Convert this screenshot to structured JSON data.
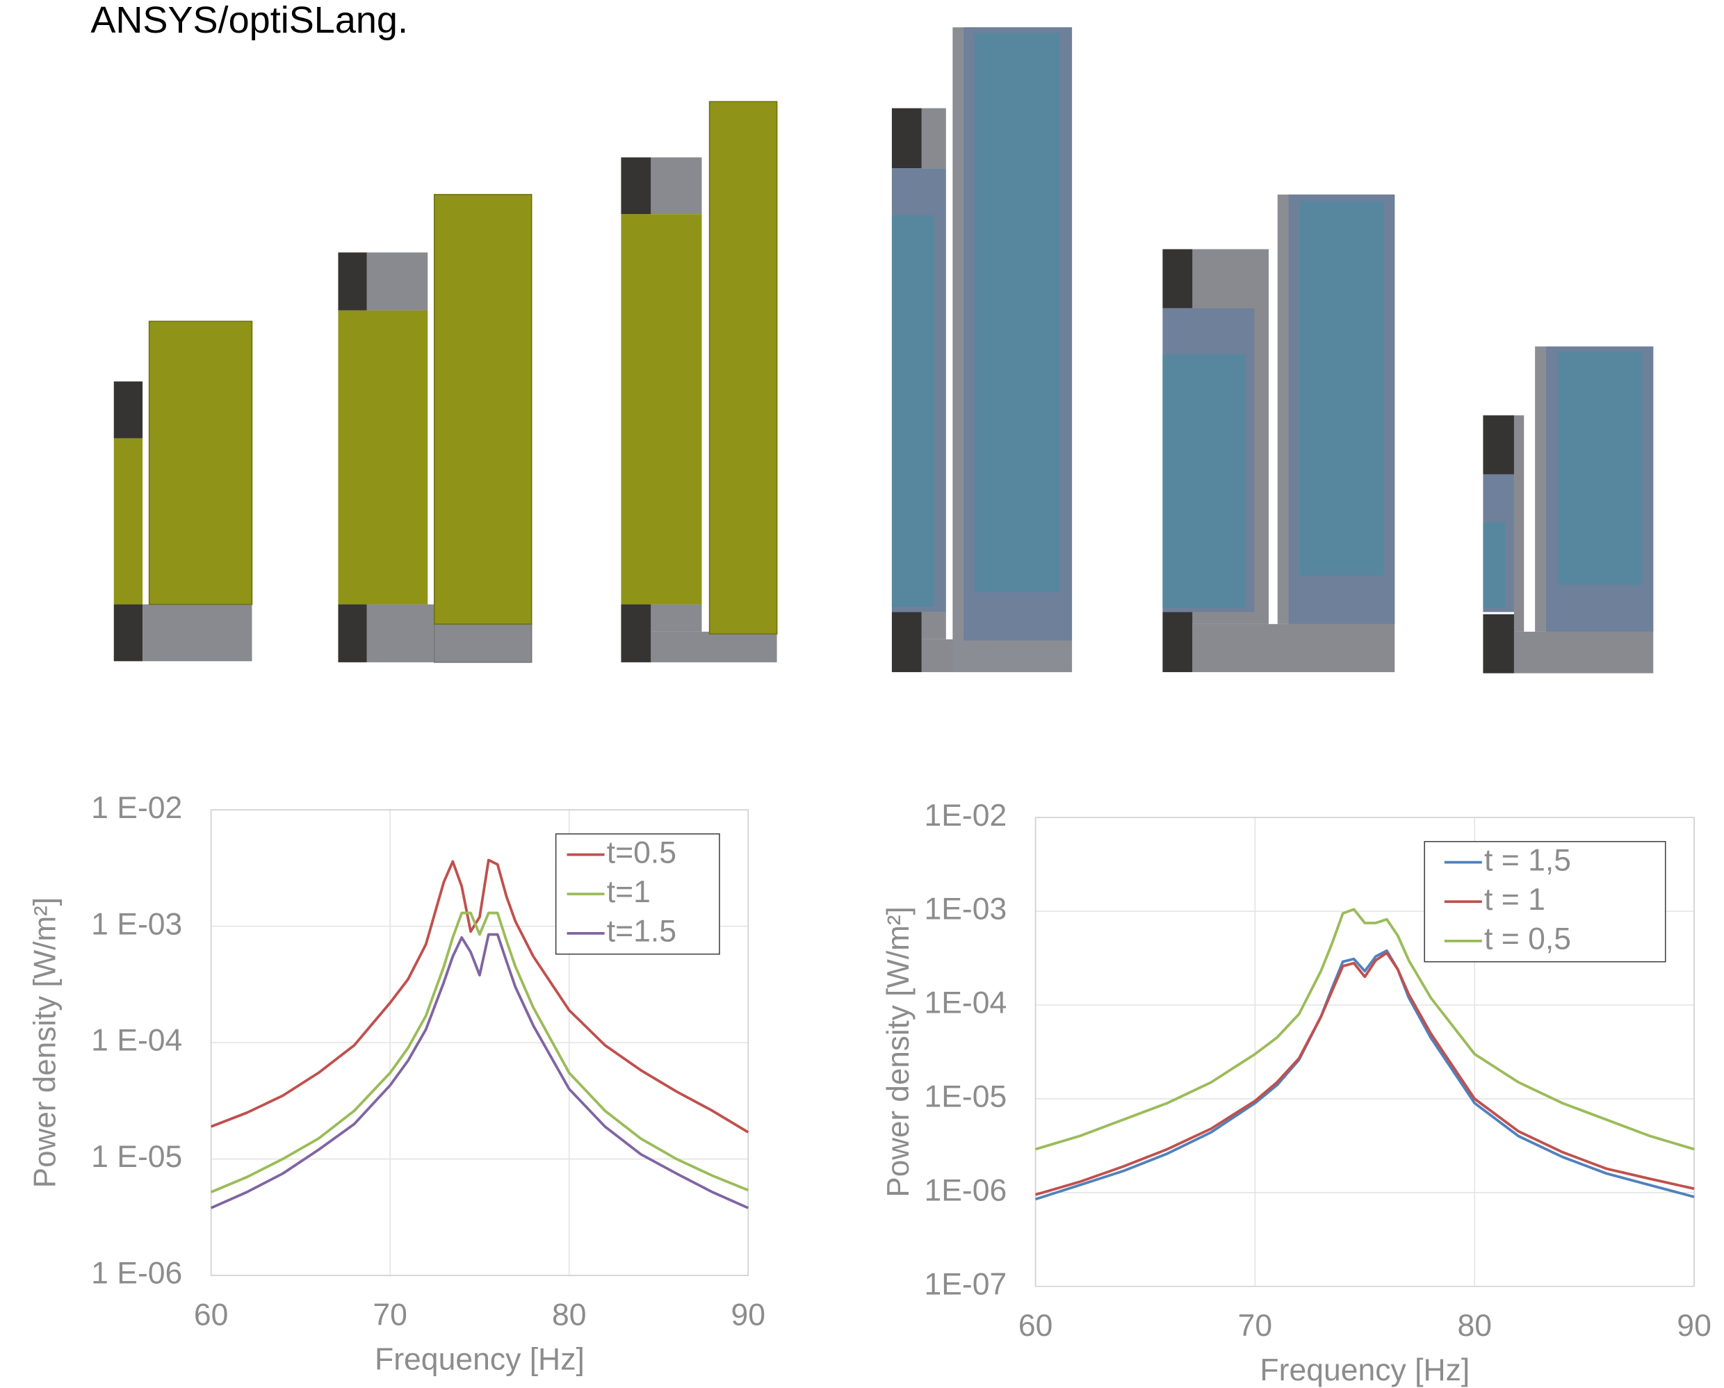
{
  "caption": "ANSYS/optiSLang.",
  "chart_data": [
    {
      "type": "line",
      "yscale": "log",
      "grid": true,
      "legend": "upper right",
      "xlabel": "Frequency [Hz]",
      "ylabel": "Power density [W/m²]",
      "xlim": [
        60,
        90
      ],
      "xticks": [
        60,
        70,
        80,
        90
      ],
      "ylim": [
        1e-06,
        0.01
      ],
      "yticks": [
        {
          "value": 1e-06,
          "label": "1 E-06"
        },
        {
          "value": 1e-05,
          "label": "1 E-05"
        },
        {
          "value": 0.0001,
          "label": "1 E-04"
        },
        {
          "value": 0.001,
          "label": "1 E-03"
        },
        {
          "value": 0.01,
          "label": "1 E-02"
        }
      ],
      "x": [
        60,
        62,
        64,
        66,
        68,
        70,
        71,
        72,
        73,
        73.5,
        74,
        74.5,
        75,
        75.5,
        76,
        76.5,
        77,
        78,
        80,
        82,
        84,
        86,
        88,
        90
      ],
      "series": [
        {
          "name": "t=0.5",
          "color": "#c0504d",
          "values": [
            1.9e-05,
            2.5e-05,
            3.5e-05,
            5.5e-05,
            9.5e-05,
            0.00022,
            0.00035,
            0.0007,
            0.0024,
            0.0036,
            0.0022,
            0.0009,
            0.0012,
            0.0037,
            0.0034,
            0.0018,
            0.0011,
            0.00055,
            0.00019,
            9.5e-05,
            5.8e-05,
            3.8e-05,
            2.6e-05,
            1.7e-05
          ]
        },
        {
          "name": "t=1",
          "color": "#9bbb59",
          "values": [
            5.2e-06,
            7e-06,
            1e-05,
            1.5e-05,
            2.6e-05,
            5.5e-05,
            9e-05,
            0.00017,
            0.00045,
            0.0008,
            0.0013,
            0.0013,
            0.00085,
            0.0013,
            0.0013,
            0.00075,
            0.00045,
            0.0002,
            5.5e-05,
            2.6e-05,
            1.5e-05,
            1e-05,
            7.2e-06,
            5.4e-06
          ]
        },
        {
          "name": "t=1.5",
          "color": "#8064a2",
          "values": [
            3.8e-06,
            5.2e-06,
            7.5e-06,
            1.2e-05,
            2e-05,
            4.3e-05,
            7e-05,
            0.00013,
            0.00033,
            0.00055,
            0.0008,
            0.0006,
            0.00038,
            0.00085,
            0.00085,
            0.0005,
            0.0003,
            0.00014,
            4e-05,
            1.9e-05,
            1.1e-05,
            7.5e-06,
            5.2e-06,
            3.8e-06
          ]
        }
      ]
    },
    {
      "type": "line",
      "yscale": "log",
      "grid": true,
      "legend": "upper right",
      "xlabel": "Frequency [Hz]",
      "ylabel": "Power density [W/m²]",
      "xlim": [
        60,
        90
      ],
      "xticks": [
        60,
        70,
        80,
        90
      ],
      "ylim": [
        1e-07,
        0.01
      ],
      "yticks": [
        {
          "value": 1e-07,
          "label": "1E-07"
        },
        {
          "value": 1e-06,
          "label": "1E-06"
        },
        {
          "value": 1e-05,
          "label": "1E-05"
        },
        {
          "value": 0.0001,
          "label": "1E-04"
        },
        {
          "value": 0.001,
          "label": "1E-03"
        },
        {
          "value": 0.01,
          "label": "1E-02"
        }
      ],
      "x": [
        60,
        62,
        64,
        66,
        68,
        70,
        71,
        72,
        73,
        73.5,
        74,
        74.5,
        75,
        75.5,
        76,
        76.5,
        77,
        78,
        80,
        82,
        84,
        86,
        88,
        90
      ],
      "series": [
        {
          "name": "t = 1,5",
          "color": "#4f81bd",
          "values": [
            8.5e-07,
            1.2e-06,
            1.7e-06,
            2.6e-06,
            4.4e-06,
            9e-06,
            1.4e-05,
            2.6e-05,
            7.5e-05,
            0.00015,
            0.00029,
            0.00031,
            0.00023,
            0.00033,
            0.00038,
            0.00024,
            0.00012,
            4.5e-05,
            9e-06,
            4e-06,
            2.4e-06,
            1.6e-06,
            1.2e-06,
            9e-07
          ]
        },
        {
          "name": "t = 1",
          "color": "#c0504d",
          "values": [
            9.5e-07,
            1.3e-06,
            1.9e-06,
            2.9e-06,
            4.8e-06,
            9.5e-06,
            1.5e-05,
            2.7e-05,
            7.5e-05,
            0.00014,
            0.00026,
            0.00028,
            0.0002,
            0.0003,
            0.00036,
            0.00024,
            0.00013,
            5e-05,
            1e-05,
            4.5e-06,
            2.7e-06,
            1.8e-06,
            1.4e-06,
            1.1e-06
          ]
        },
        {
          "name": "t = 0,5",
          "color": "#9bbb59",
          "values": [
            2.9e-06,
            4e-06,
            6e-06,
            9e-06,
            1.5e-05,
            3e-05,
            4.5e-05,
            8e-05,
            0.00023,
            0.00045,
            0.00095,
            0.00105,
            0.00075,
            0.00075,
            0.00082,
            0.00055,
            0.0003,
            0.00012,
            3e-05,
            1.5e-05,
            9e-06,
            6e-06,
            4e-06,
            2.9e-06
          ]
        }
      ]
    }
  ]
}
